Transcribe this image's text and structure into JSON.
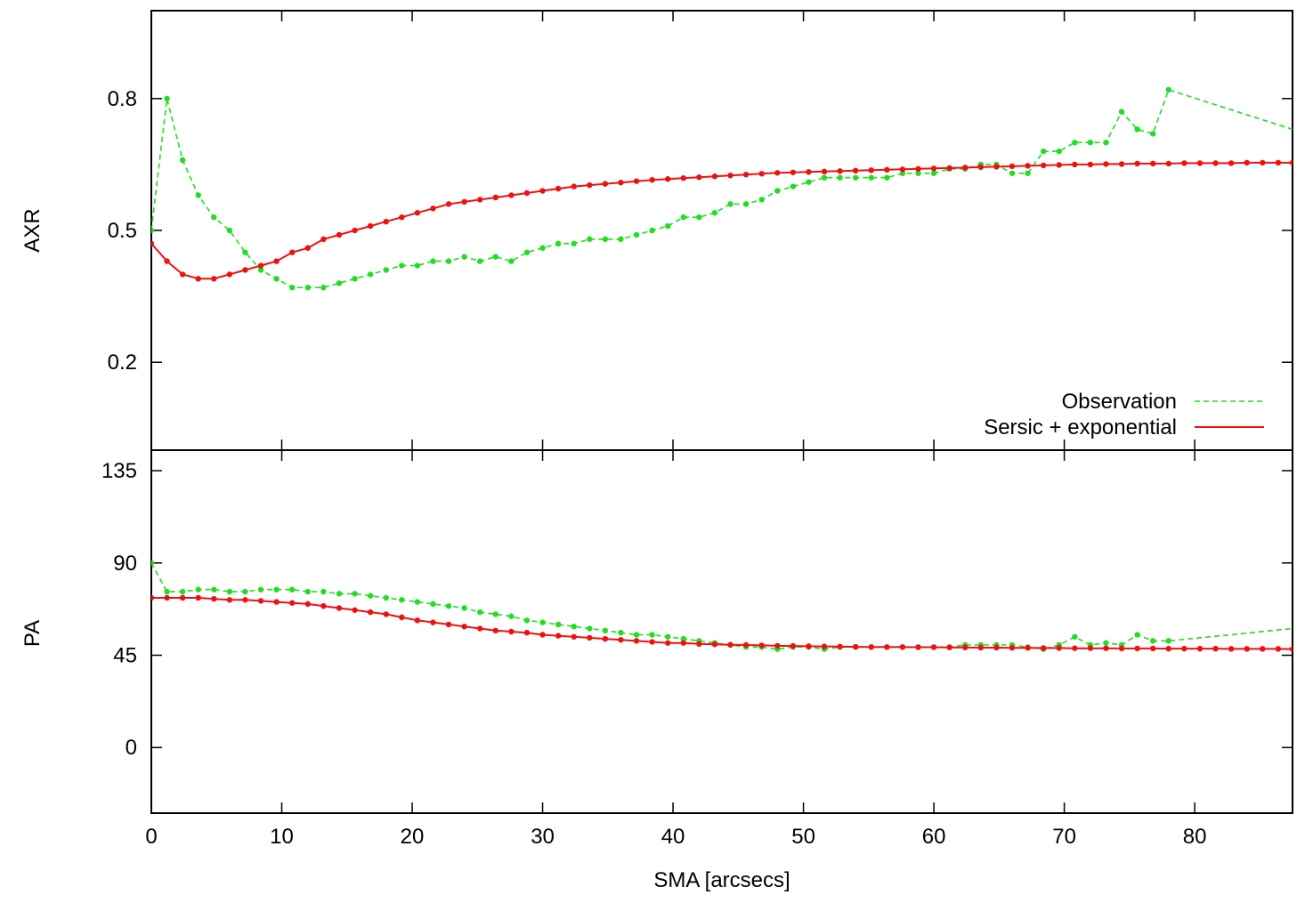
{
  "chart_data": [
    {
      "type": "line",
      "panel": "top",
      "ylabel": "AXR",
      "xlim": [
        0,
        87.5
      ],
      "ylim": [
        0,
        1.0
      ],
      "yticks": [
        0.2,
        0.5,
        0.8
      ],
      "grid": false,
      "legend_placement": "bottom-right",
      "series": [
        {
          "name": "Observation",
          "color": "#22dd22",
          "style": "dashed-with-points",
          "x": [
            0,
            1.2,
            2.4,
            3.6,
            4.8,
            6.0,
            7.2,
            8.4,
            9.6,
            10.8,
            12.0,
            13.2,
            14.4,
            15.6,
            16.8,
            18.0,
            19.2,
            20.4,
            21.6,
            22.8,
            24.0,
            25.2,
            26.4,
            27.6,
            28.8,
            30.0,
            31.2,
            32.4,
            33.6,
            34.8,
            36.0,
            37.2,
            38.4,
            39.6,
            40.8,
            42.0,
            43.2,
            44.4,
            45.6,
            46.8,
            48.0,
            49.2,
            50.4,
            51.6,
            52.8,
            54.0,
            55.2,
            56.4,
            57.6,
            58.8,
            60.0,
            61.2,
            62.4,
            63.6,
            64.8,
            66.0,
            67.2,
            68.4,
            69.6,
            70.8,
            72.0,
            73.2,
            74.4,
            75.6,
            76.8,
            78.0,
            87.5
          ],
          "y": [
            0.5,
            0.8,
            0.66,
            0.58,
            0.53,
            0.5,
            0.45,
            0.41,
            0.39,
            0.37,
            0.37,
            0.37,
            0.38,
            0.39,
            0.4,
            0.41,
            0.42,
            0.42,
            0.43,
            0.43,
            0.44,
            0.43,
            0.44,
            0.43,
            0.45,
            0.46,
            0.47,
            0.47,
            0.48,
            0.48,
            0.48,
            0.49,
            0.5,
            0.51,
            0.53,
            0.53,
            0.54,
            0.56,
            0.56,
            0.57,
            0.59,
            0.6,
            0.61,
            0.62,
            0.62,
            0.62,
            0.62,
            0.62,
            0.63,
            0.63,
            0.63,
            0.64,
            0.64,
            0.65,
            0.65,
            0.63,
            0.63,
            0.68,
            0.68,
            0.7,
            0.7,
            0.7,
            0.77,
            0.73,
            0.72,
            0.82,
            0.73
          ]
        },
        {
          "name": "Sersic + exponential",
          "color": "#ee1111",
          "style": "solid-with-points",
          "x": [
            0,
            1.2,
            2.4,
            3.6,
            4.8,
            6.0,
            7.2,
            8.4,
            9.6,
            10.8,
            12.0,
            13.2,
            14.4,
            15.6,
            16.8,
            18.0,
            19.2,
            20.4,
            21.6,
            22.8,
            24.0,
            25.2,
            26.4,
            27.6,
            28.8,
            30.0,
            31.2,
            32.4,
            33.6,
            34.8,
            36.0,
            37.2,
            38.4,
            39.6,
            40.8,
            42.0,
            43.2,
            44.4,
            45.6,
            46.8,
            48.0,
            49.2,
            50.4,
            51.6,
            52.8,
            54.0,
            55.2,
            56.4,
            57.6,
            58.8,
            60.0,
            61.2,
            62.4,
            63.6,
            64.8,
            66.0,
            67.2,
            68.4,
            69.6,
            70.8,
            72.0,
            73.2,
            74.4,
            75.6,
            76.8,
            78.0,
            79.2,
            80.4,
            81.6,
            82.8,
            84.0,
            85.2,
            86.4,
            87.5
          ],
          "y": [
            0.47,
            0.43,
            0.4,
            0.39,
            0.39,
            0.4,
            0.41,
            0.42,
            0.43,
            0.45,
            0.46,
            0.48,
            0.49,
            0.5,
            0.51,
            0.52,
            0.53,
            0.54,
            0.55,
            0.56,
            0.565,
            0.57,
            0.575,
            0.58,
            0.585,
            0.59,
            0.595,
            0.6,
            0.603,
            0.606,
            0.609,
            0.612,
            0.615,
            0.617,
            0.619,
            0.621,
            0.623,
            0.625,
            0.627,
            0.629,
            0.631,
            0.632,
            0.633,
            0.634,
            0.635,
            0.636,
            0.637,
            0.638,
            0.639,
            0.64,
            0.641,
            0.642,
            0.643,
            0.644,
            0.645,
            0.646,
            0.647,
            0.648,
            0.649,
            0.65,
            0.65,
            0.651,
            0.651,
            0.652,
            0.652,
            0.652,
            0.653,
            0.653,
            0.653,
            0.653,
            0.654,
            0.654,
            0.654,
            0.654
          ]
        }
      ]
    },
    {
      "type": "line",
      "panel": "bottom",
      "xlabel": "SMA [arcsecs]",
      "ylabel": "PA",
      "xlim": [
        0,
        87.5
      ],
      "ylim": [
        -32,
        145
      ],
      "xticks": [
        0,
        10,
        20,
        30,
        40,
        50,
        60,
        70,
        80
      ],
      "yticks": [
        0,
        45,
        90,
        135
      ],
      "grid": false,
      "series": [
        {
          "name": "Observation",
          "color": "#22dd22",
          "style": "dashed-with-points",
          "x": [
            0,
            1.2,
            2.4,
            3.6,
            4.8,
            6.0,
            7.2,
            8.4,
            9.6,
            10.8,
            12.0,
            13.2,
            14.4,
            15.6,
            16.8,
            18.0,
            19.2,
            20.4,
            21.6,
            22.8,
            24.0,
            25.2,
            26.4,
            27.6,
            28.8,
            30.0,
            31.2,
            32.4,
            33.6,
            34.8,
            36.0,
            37.2,
            38.4,
            39.6,
            40.8,
            42.0,
            43.2,
            44.4,
            45.6,
            46.8,
            48.0,
            49.2,
            50.4,
            51.6,
            52.8,
            54.0,
            55.2,
            56.4,
            57.6,
            58.8,
            60.0,
            61.2,
            62.4,
            63.6,
            64.8,
            66.0,
            67.2,
            68.4,
            69.6,
            70.8,
            72.0,
            73.2,
            74.4,
            75.6,
            76.8,
            78.0,
            87.5
          ],
          "y": [
            90,
            76,
            76,
            77,
            77,
            76,
            76,
            77,
            77,
            77,
            76,
            76,
            75,
            75,
            74,
            73,
            72,
            71,
            70,
            69,
            68,
            66,
            65,
            64,
            62,
            61,
            60,
            59,
            58,
            57,
            56,
            55,
            55,
            54,
            53,
            52,
            51,
            50,
            49,
            49,
            48,
            49,
            49,
            48,
            49,
            49,
            49,
            49,
            49,
            49,
            49,
            49,
            50,
            50,
            50,
            50,
            49,
            48,
            50,
            54,
            50,
            51,
            50,
            55,
            52,
            52,
            58
          ]
        },
        {
          "name": "Sersic + exponential",
          "color": "#ee1111",
          "style": "solid-with-points",
          "x": [
            0,
            1.2,
            2.4,
            3.6,
            4.8,
            6.0,
            7.2,
            8.4,
            9.6,
            10.8,
            12.0,
            13.2,
            14.4,
            15.6,
            16.8,
            18.0,
            19.2,
            20.4,
            21.6,
            22.8,
            24.0,
            25.2,
            26.4,
            27.6,
            28.8,
            30.0,
            31.2,
            32.4,
            33.6,
            34.8,
            36.0,
            37.2,
            38.4,
            39.6,
            40.8,
            42.0,
            43.2,
            44.4,
            45.6,
            46.8,
            48.0,
            49.2,
            50.4,
            51.6,
            52.8,
            54.0,
            55.2,
            56.4,
            57.6,
            58.8,
            60.0,
            61.2,
            62.4,
            63.6,
            64.8,
            66.0,
            67.2,
            68.4,
            69.6,
            70.8,
            72.0,
            73.2,
            74.4,
            75.6,
            76.8,
            78.0,
            79.2,
            80.4,
            81.6,
            82.8,
            84.0,
            85.2,
            86.4,
            87.5
          ],
          "y": [
            73,
            73,
            73,
            73,
            72.5,
            72,
            72,
            71.5,
            71,
            70.5,
            70,
            69,
            68,
            67,
            66,
            65,
            63.5,
            62,
            61,
            60,
            59,
            58,
            57,
            56.5,
            56,
            55,
            54.5,
            54,
            53.5,
            53,
            52.5,
            52,
            51.5,
            51,
            51,
            50.5,
            50.3,
            50.1,
            50,
            49.8,
            49.6,
            49.5,
            49.4,
            49.3,
            49.2,
            49.1,
            49,
            49,
            49,
            48.9,
            48.9,
            48.8,
            48.8,
            48.7,
            48.7,
            48.6,
            48.6,
            48.5,
            48.5,
            48.4,
            48.4,
            48.4,
            48.3,
            48.3,
            48.3,
            48.2,
            48.2,
            48.2,
            48.2,
            48.1,
            48.1,
            48.1,
            48.1,
            48.0
          ]
        }
      ]
    }
  ]
}
